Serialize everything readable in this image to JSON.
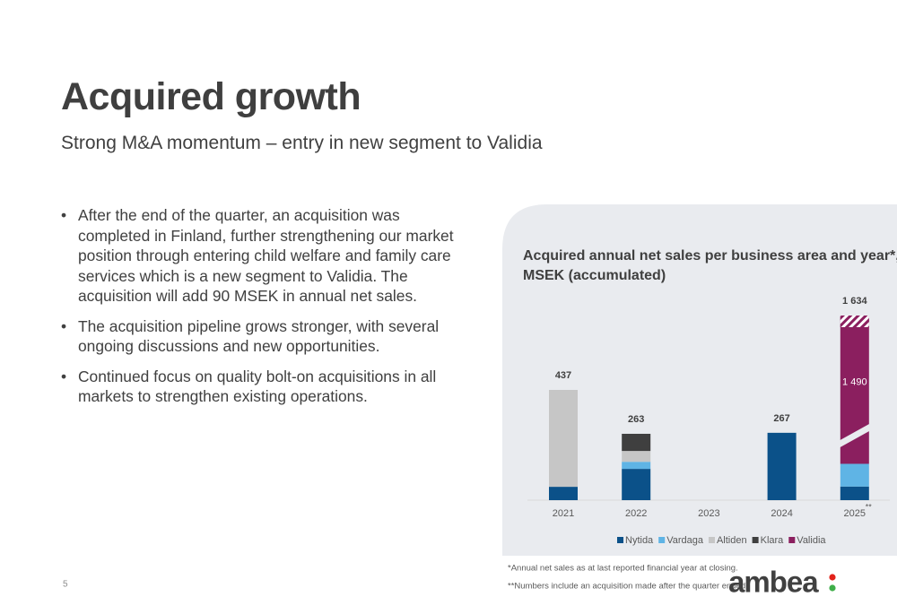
{
  "title": "Acquired growth",
  "subtitle": "Strong M&A momentum – entry in new segment to Validia",
  "bullets": [
    "After the end of the quarter, an acquisition was completed in Finland, further strengthening our market position through entering child welfare and family care services which is a new segment to Validia. The acquisition will add 90 MSEK in annual net sales.",
    "The acquisition pipeline grows stronger, with several ongoing discussions and new opportunities.",
    "Continued focus on quality bolt-on acquisitions in all markets to strengthen existing operations."
  ],
  "chart_data": {
    "type": "stacked_bar",
    "title": "Acquired annual net sales per business area and year*, MSEK (accumulated)",
    "categories": [
      "2021",
      "2022",
      "2023",
      "2024",
      "2025"
    ],
    "category_marks": {
      "4": "**"
    },
    "axis_break": true,
    "series": [
      {
        "name": "Nytida",
        "color": "#0b5189",
        "values": [
          53,
          124,
          null,
          267,
          54
        ]
      },
      {
        "name": "Vardaga",
        "color": "#5fb4e5",
        "values": [
          null,
          28,
          null,
          null,
          90
        ]
      },
      {
        "name": "Altiden",
        "color": "#c6c6c6",
        "values": [
          384,
          43,
          null,
          null,
          null
        ]
      },
      {
        "name": "Klara",
        "color": "#3f3f3f",
        "values": [
          null,
          68,
          null,
          null,
          null
        ]
      },
      {
        "name": "Validia",
        "color": "#8b1f5f",
        "values": [
          null,
          null,
          null,
          null,
          1490
        ],
        "value_labels": [
          null,
          null,
          null,
          null,
          "1 490"
        ]
      }
    ],
    "totals": [
      437,
      263,
      null,
      267,
      {
        "value": 1634,
        "label": "1 634"
      }
    ]
  },
  "footnotes": [
    "*Annual net sales as at last reported financial year at closing.",
    "**Numbers include an acquisition made after the quarter ended."
  ],
  "page_number": "5",
  "logo": "ambea"
}
